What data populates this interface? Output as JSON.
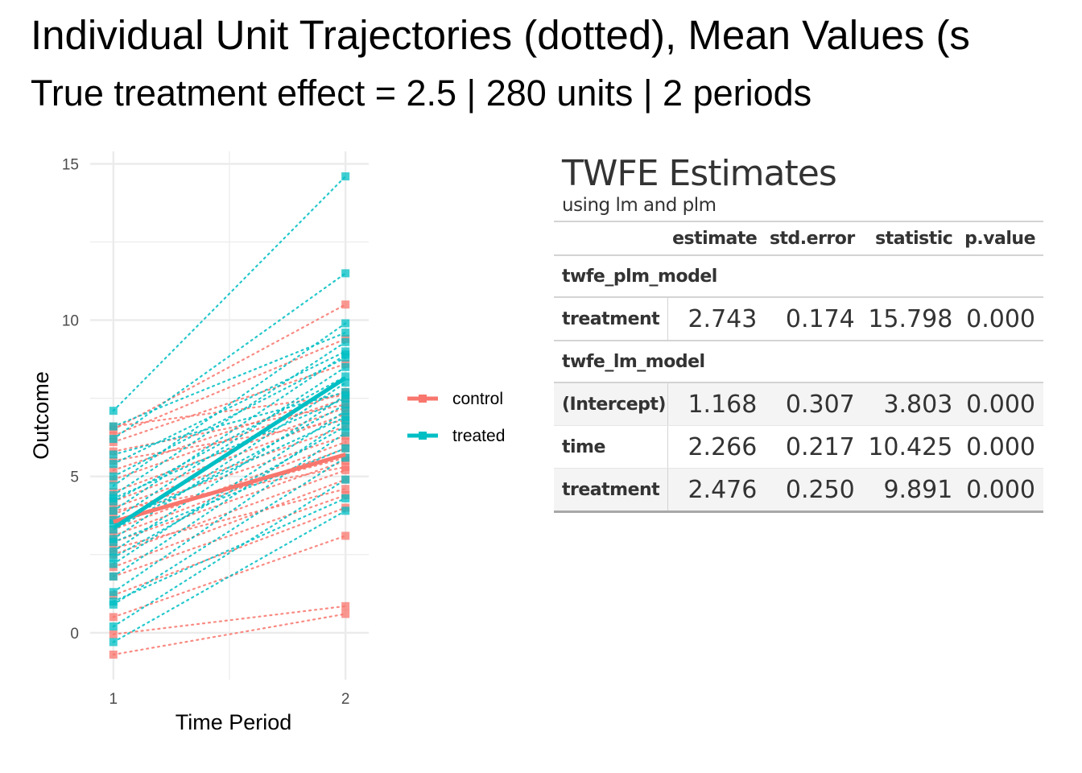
{
  "title": "Individual Unit Trajectories (dotted), Mean Values (s",
  "subtitle": "True treatment effect = 2.5 | 280 units | 2 periods",
  "colors": {
    "control": "#F8766D",
    "treated": "#00BFC4",
    "grid": "#EBEBEB"
  },
  "chart_data": {
    "type": "line",
    "xlabel": "Time Period",
    "ylabel": "Outcome",
    "x": [
      1,
      2
    ],
    "xticks": [
      1,
      2
    ],
    "yticks": [
      0,
      5,
      10,
      15
    ],
    "xlim": [
      0.9,
      2.1
    ],
    "ylim": [
      -1.5,
      15.4
    ],
    "legend_position": "right",
    "legend": [
      "control",
      "treated"
    ],
    "series": [
      {
        "name": "control",
        "values": [
          3.55,
          5.7
        ]
      },
      {
        "name": "treated",
        "values": [
          3.35,
          8.15
        ]
      }
    ],
    "units": {
      "control": [
        [
          -0.7,
          0.6
        ],
        [
          -0.05,
          0.85
        ],
        [
          0.5,
          3.1
        ],
        [
          1.2,
          4.0
        ],
        [
          1.8,
          4.4
        ],
        [
          2.1,
          4.9
        ],
        [
          2.5,
          5.2
        ],
        [
          2.9,
          5.5
        ],
        [
          3.1,
          5.9
        ],
        [
          3.3,
          6.1
        ],
        [
          3.6,
          5.6
        ],
        [
          3.8,
          6.3
        ],
        [
          4.0,
          6.6
        ],
        [
          4.2,
          7.0
        ],
        [
          4.5,
          7.2
        ],
        [
          4.9,
          7.5
        ],
        [
          5.2,
          7.7
        ],
        [
          5.5,
          6.8
        ],
        [
          5.8,
          7.3
        ],
        [
          6.1,
          8.6
        ],
        [
          6.3,
          9.4
        ],
        [
          6.5,
          10.5
        ],
        [
          6.6,
          7.6
        ],
        [
          2.7,
          4.6
        ],
        [
          3.9,
          5.3
        ]
      ],
      "treated": [
        [
          -0.3,
          3.9
        ],
        [
          0.2,
          4.9
        ],
        [
          0.9,
          5.6
        ],
        [
          1.3,
          6.4
        ],
        [
          1.8,
          6.8
        ],
        [
          2.2,
          7.1
        ],
        [
          2.6,
          7.6
        ],
        [
          3.0,
          8.0
        ],
        [
          3.3,
          7.3
        ],
        [
          3.6,
          8.5
        ],
        [
          3.9,
          8.9
        ],
        [
          4.2,
          8.2
        ],
        [
          4.4,
          9.3
        ],
        [
          4.7,
          9.9
        ],
        [
          5.0,
          8.8
        ],
        [
          5.4,
          9.0
        ],
        [
          5.7,
          7.7
        ],
        [
          6.2,
          11.5
        ],
        [
          6.6,
          9.6
        ],
        [
          7.1,
          14.6
        ],
        [
          1.0,
          4.3
        ],
        [
          2.4,
          6.6
        ],
        [
          3.5,
          6.9
        ],
        [
          4.3,
          7.5
        ],
        [
          2.9,
          5.9
        ]
      ]
    }
  },
  "table": {
    "title": "TWFE Estimates",
    "subtitle": "using lm and plm",
    "columns": [
      "",
      "estimate",
      "std.error",
      "statistic",
      "p.value"
    ],
    "groups": [
      {
        "label": "twfe_plm_model",
        "rows": [
          {
            "term": "treatment",
            "estimate": "2.743",
            "std_error": "0.174",
            "statistic": "15.798",
            "p_value": "0.000"
          }
        ]
      },
      {
        "label": "twfe_lm_model",
        "rows": [
          {
            "term": "(Intercept)",
            "estimate": "1.168",
            "std_error": "0.307",
            "statistic": "3.803",
            "p_value": "0.000"
          },
          {
            "term": "time",
            "estimate": "2.266",
            "std_error": "0.217",
            "statistic": "10.425",
            "p_value": "0.000"
          },
          {
            "term": "treatment",
            "estimate": "2.476",
            "std_error": "0.250",
            "statistic": "9.891",
            "p_value": "0.000"
          }
        ]
      }
    ]
  }
}
